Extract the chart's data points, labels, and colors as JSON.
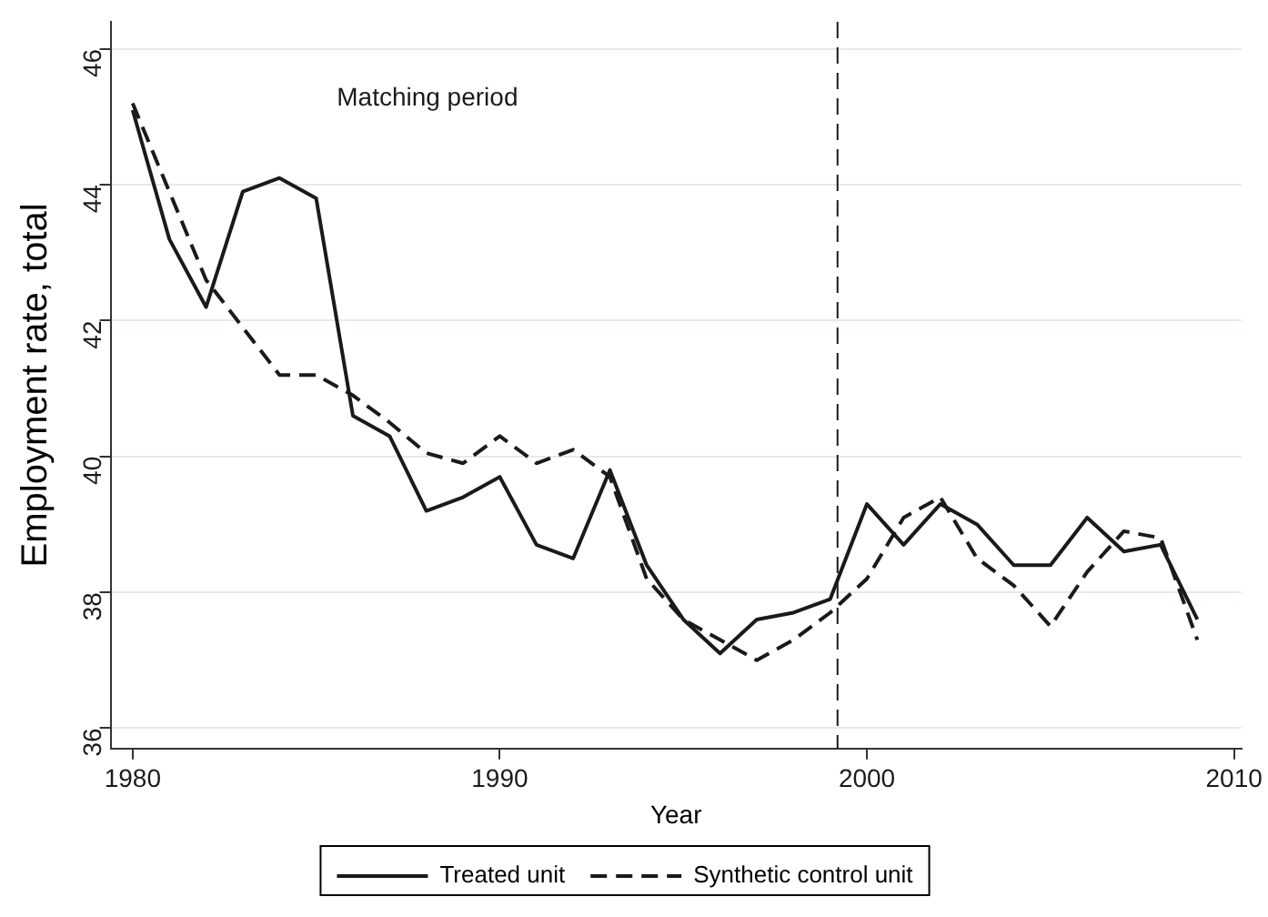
{
  "chart_data": {
    "type": "line",
    "xlabel": "Year",
    "ylabel": "Employment rate, total",
    "x": [
      1980,
      1981,
      1982,
      1983,
      1984,
      1985,
      1986,
      1987,
      1988,
      1989,
      1990,
      1991,
      1992,
      1993,
      1994,
      1995,
      1996,
      1997,
      1998,
      1999,
      2000,
      2001,
      2002,
      2003,
      2004,
      2005,
      2006,
      2007,
      2008,
      2009
    ],
    "series": [
      {
        "name": "Treated unit",
        "color": "#1a1a1a",
        "line_style": "solid",
        "values": [
          45.1,
          43.2,
          42.2,
          43.9,
          44.1,
          43.8,
          40.6,
          40.3,
          39.2,
          39.4,
          39.7,
          38.7,
          38.5,
          39.8,
          38.4,
          37.6,
          37.1,
          37.6,
          37.7,
          37.9,
          39.3,
          38.7,
          39.3,
          39.0,
          38.4,
          38.4,
          39.1,
          38.6,
          38.7,
          37.6
        ]
      },
      {
        "name": "Synthetic control unit",
        "color": "#1a1a1a",
        "line_style": "dashed",
        "values": [
          45.2,
          43.9,
          42.6,
          41.9,
          41.2,
          41.2,
          40.9,
          40.5,
          40.05,
          39.9,
          40.3,
          39.9,
          40.1,
          39.7,
          38.2,
          37.6,
          37.3,
          37.0,
          37.3,
          37.7,
          38.2,
          39.1,
          39.4,
          38.5,
          38.1,
          37.5,
          38.3,
          38.9,
          38.8,
          37.3
        ]
      }
    ],
    "xlim": [
      1979.4,
      2010.2
    ],
    "xticks": [
      1980,
      1990,
      2000,
      2010
    ],
    "ylim": [
      35.7,
      46.4
    ],
    "yticks": [
      36,
      38,
      40,
      42,
      44,
      46
    ],
    "ref_lines": [
      {
        "axis": "x",
        "value": 1999.2,
        "line_style": "dashed",
        "color": "#1a1a1a"
      }
    ],
    "annotations": [
      "Matching period"
    ],
    "grid": "y",
    "legend": "bottom",
    "marker": "none"
  }
}
